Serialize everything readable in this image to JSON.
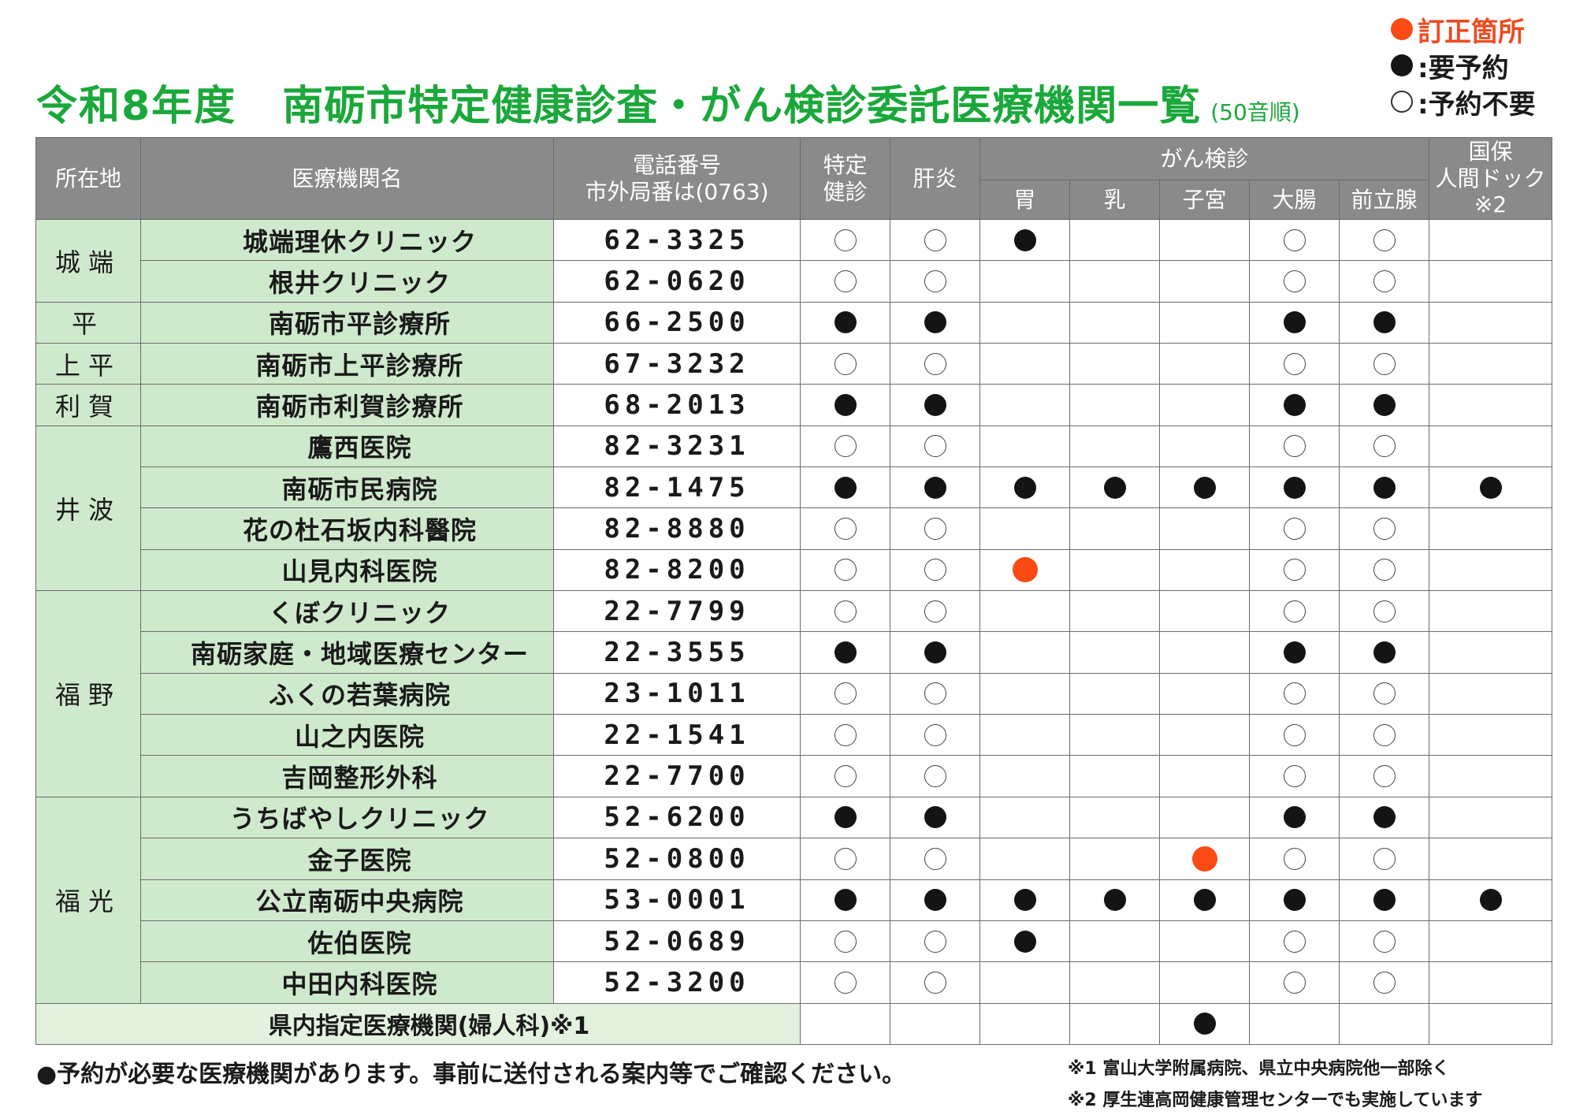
{
  "title": {
    "year": "令和8年度",
    "main": "南砺市特定健康診査・がん検診委託医療機関一覧",
    "sub": "(50音順)"
  },
  "legend": {
    "correction": "訂正箇所",
    "reserve": ":要予約",
    "no_reserve": ":予約不要",
    "correction_color": "#fb4a14"
  },
  "headers": {
    "area": "所在地",
    "name": "医療機関名",
    "phone_line1": "電話番号",
    "phone_line2": "市外局番は(0763)",
    "tokutei_line1": "特定",
    "tokutei_line2": "健診",
    "kanen": "肝炎",
    "gan": "がん検診",
    "stomach": "胃",
    "breast": "乳",
    "uterus": "子宮",
    "colon": "大腸",
    "prostate": "前立腺",
    "dock_line1": "国保",
    "dock_line2": "人間ドック",
    "dock_line3": "※2"
  },
  "rows": [
    {
      "area": "城端",
      "area_rows": 2,
      "name": "城端理休クリニック",
      "phone": "62-3325",
      "marks": [
        "o",
        "o",
        "b",
        "",
        "",
        "o",
        "o",
        ""
      ]
    },
    {
      "name": "根井クリニック",
      "phone": "62-0620",
      "marks": [
        "o",
        "o",
        "",
        "",
        "",
        "o",
        "o",
        ""
      ]
    },
    {
      "area": "平",
      "area_rows": 1,
      "name": "南砺市平診療所",
      "phone": "66-2500",
      "marks": [
        "b",
        "b",
        "",
        "",
        "",
        "b",
        "b",
        ""
      ]
    },
    {
      "area": "上平",
      "area_rows": 1,
      "name": "南砺市上平診療所",
      "phone": "67-3232",
      "marks": [
        "o",
        "o",
        "",
        "",
        "",
        "o",
        "o",
        ""
      ]
    },
    {
      "area": "利賀",
      "area_rows": 1,
      "name": "南砺市利賀診療所",
      "phone": "68-2013",
      "marks": [
        "b",
        "b",
        "",
        "",
        "",
        "b",
        "b",
        ""
      ]
    },
    {
      "area": "井波",
      "area_rows": 4,
      "name": "鷹西医院",
      "phone": "82-3231",
      "marks": [
        "o",
        "o",
        "",
        "",
        "",
        "o",
        "o",
        ""
      ]
    },
    {
      "name": "南砺市民病院",
      "phone": "82-1475",
      "marks": [
        "b",
        "b",
        "b",
        "b",
        "b",
        "b",
        "b",
        "b"
      ]
    },
    {
      "name": "花の杜石坂内科醫院",
      "phone": "82-8880",
      "marks": [
        "o",
        "o",
        "",
        "",
        "",
        "o",
        "o",
        ""
      ]
    },
    {
      "name": "山見内科医院",
      "phone": "82-8200",
      "marks": [
        "o",
        "o",
        "r",
        "",
        "",
        "o",
        "o",
        ""
      ]
    },
    {
      "area": "福野",
      "area_rows": 5,
      "name": "くぼクリニック",
      "phone": "22-7799",
      "marks": [
        "o",
        "o",
        "",
        "",
        "",
        "o",
        "o",
        ""
      ]
    },
    {
      "name": "南砺家庭・地域医療センター",
      "phone": "22-3555",
      "marks": [
        "b",
        "b",
        "",
        "",
        "",
        "b",
        "b",
        ""
      ]
    },
    {
      "name": "ふくの若葉病院",
      "phone": "23-1011",
      "marks": [
        "o",
        "o",
        "",
        "",
        "",
        "o",
        "o",
        ""
      ]
    },
    {
      "name": "山之内医院",
      "phone": "22-1541",
      "marks": [
        "o",
        "o",
        "",
        "",
        "",
        "o",
        "o",
        ""
      ]
    },
    {
      "name": "吉岡整形外科",
      "phone": "22-7700",
      "marks": [
        "o",
        "o",
        "",
        "",
        "",
        "o",
        "o",
        ""
      ]
    },
    {
      "area": "福光",
      "area_rows": 5,
      "name": "うちばやしクリニック",
      "phone": "52-6200",
      "marks": [
        "b",
        "b",
        "",
        "",
        "",
        "b",
        "b",
        ""
      ]
    },
    {
      "name": "金子医院",
      "phone": "52-0800",
      "marks": [
        "o",
        "o",
        "",
        "",
        "r",
        "o",
        "o",
        ""
      ]
    },
    {
      "name": "公立南砺中央病院",
      "phone": "53-0001",
      "marks": [
        "b",
        "b",
        "b",
        "b",
        "b",
        "b",
        "b",
        "b"
      ]
    },
    {
      "name": "佐伯医院",
      "phone": "52-0689",
      "marks": [
        "o",
        "o",
        "b",
        "",
        "",
        "o",
        "o",
        ""
      ]
    },
    {
      "name": "中田内科医院",
      "phone": "52-3200",
      "marks": [
        "o",
        "o",
        "",
        "",
        "",
        "o",
        "o",
        ""
      ]
    }
  ],
  "footer_row": {
    "label": "県内指定医療機関(婦人科)※1",
    "marks": [
      "",
      "",
      "",
      "",
      "b",
      "",
      "",
      ""
    ]
  },
  "notes": {
    "left": "●予約が必要な医療機関があります。事前に送付される案内等でご確認ください。",
    "right1": "※1 富山大学附属病院、県立中央病院他一部除く",
    "right2": "※2 厚生連高岡健康管理センターでも実施しています"
  }
}
